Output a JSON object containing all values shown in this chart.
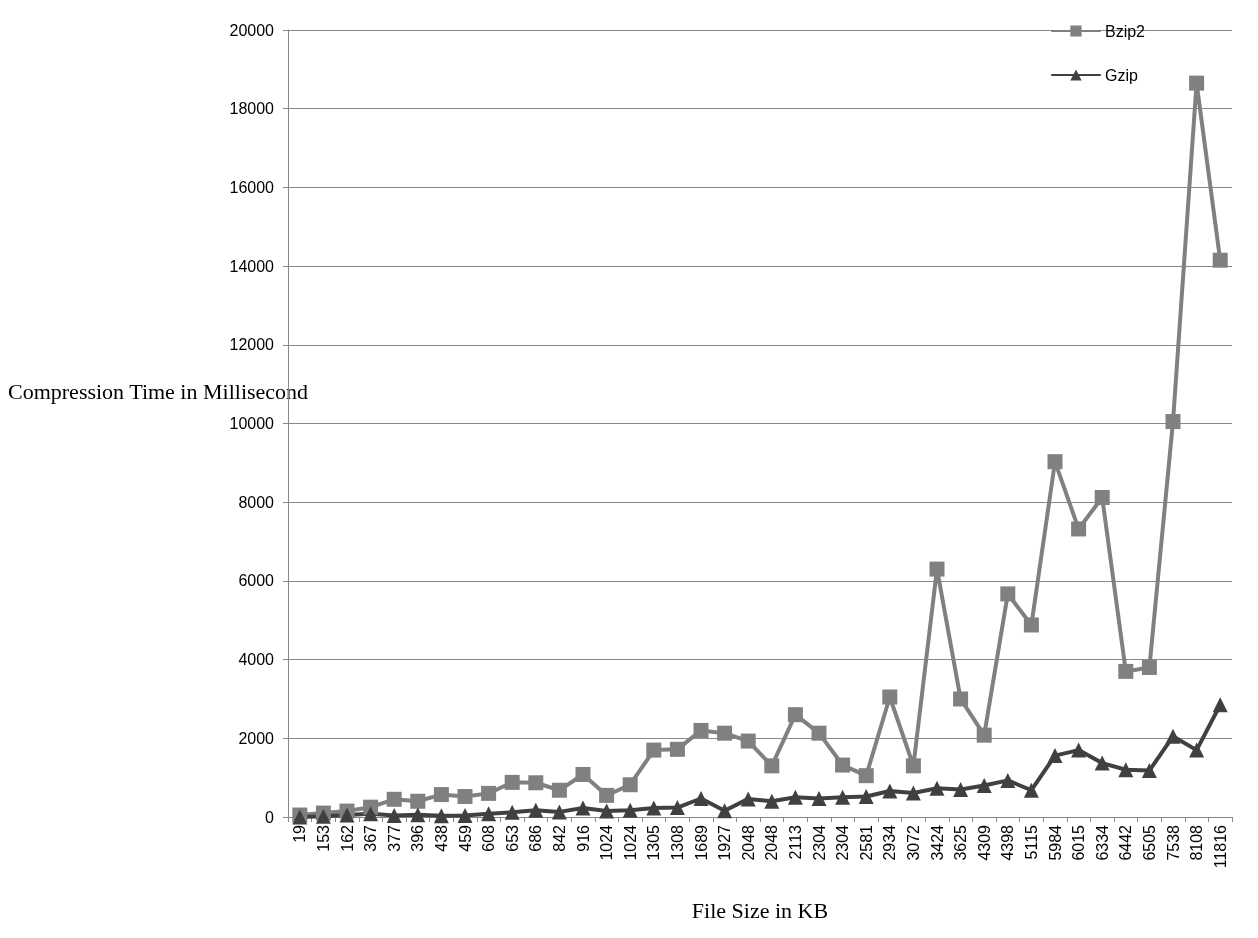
{
  "chart_data": {
    "type": "line",
    "xlabel": "File Size in KB",
    "ylabel": "Compression Time in Millisecond",
    "categories": [
      "19",
      "153",
      "162",
      "367",
      "377",
      "396",
      "438",
      "459",
      "608",
      "653",
      "686",
      "842",
      "916",
      "1024",
      "1024",
      "1305",
      "1308",
      "1689",
      "1927",
      "2048",
      "2048",
      "2113",
      "2304",
      "2304",
      "2581",
      "2934",
      "3072",
      "3424",
      "3625",
      "4309",
      "4398",
      "5115",
      "5984",
      "6015",
      "6334",
      "6442",
      "6505",
      "7538",
      "8108",
      "11816"
    ],
    "series": [
      {
        "name": "Bzip2",
        "color": "#808080",
        "marker": "square",
        "values": [
          50,
          100,
          150,
          250,
          450,
          400,
          570,
          520,
          600,
          880,
          870,
          680,
          1080,
          550,
          820,
          1700,
          1720,
          2200,
          2130,
          1930,
          1300,
          2600,
          2130,
          1320,
          1050,
          3050,
          1300,
          6300,
          3000,
          2080,
          5670,
          4880,
          9030,
          7320,
          8120,
          3700,
          3800,
          10050,
          18650,
          14150
        ]
      },
      {
        "name": "Gzip",
        "color": "#404040",
        "marker": "triangle",
        "values": [
          0,
          20,
          50,
          80,
          40,
          60,
          30,
          40,
          80,
          120,
          170,
          130,
          230,
          150,
          170,
          230,
          240,
          470,
          160,
          460,
          400,
          500,
          470,
          500,
          520,
          660,
          610,
          730,
          700,
          800,
          930,
          680,
          1560,
          1700,
          1370,
          1200,
          1180,
          2050,
          1700,
          2850
        ]
      }
    ],
    "ylim": [
      0,
      20000
    ],
    "yticks": [
      0,
      2000,
      4000,
      6000,
      8000,
      10000,
      12000,
      14000,
      16000,
      18000,
      20000
    ],
    "grid": "y",
    "legend": "top right",
    "line_style": "solid"
  }
}
